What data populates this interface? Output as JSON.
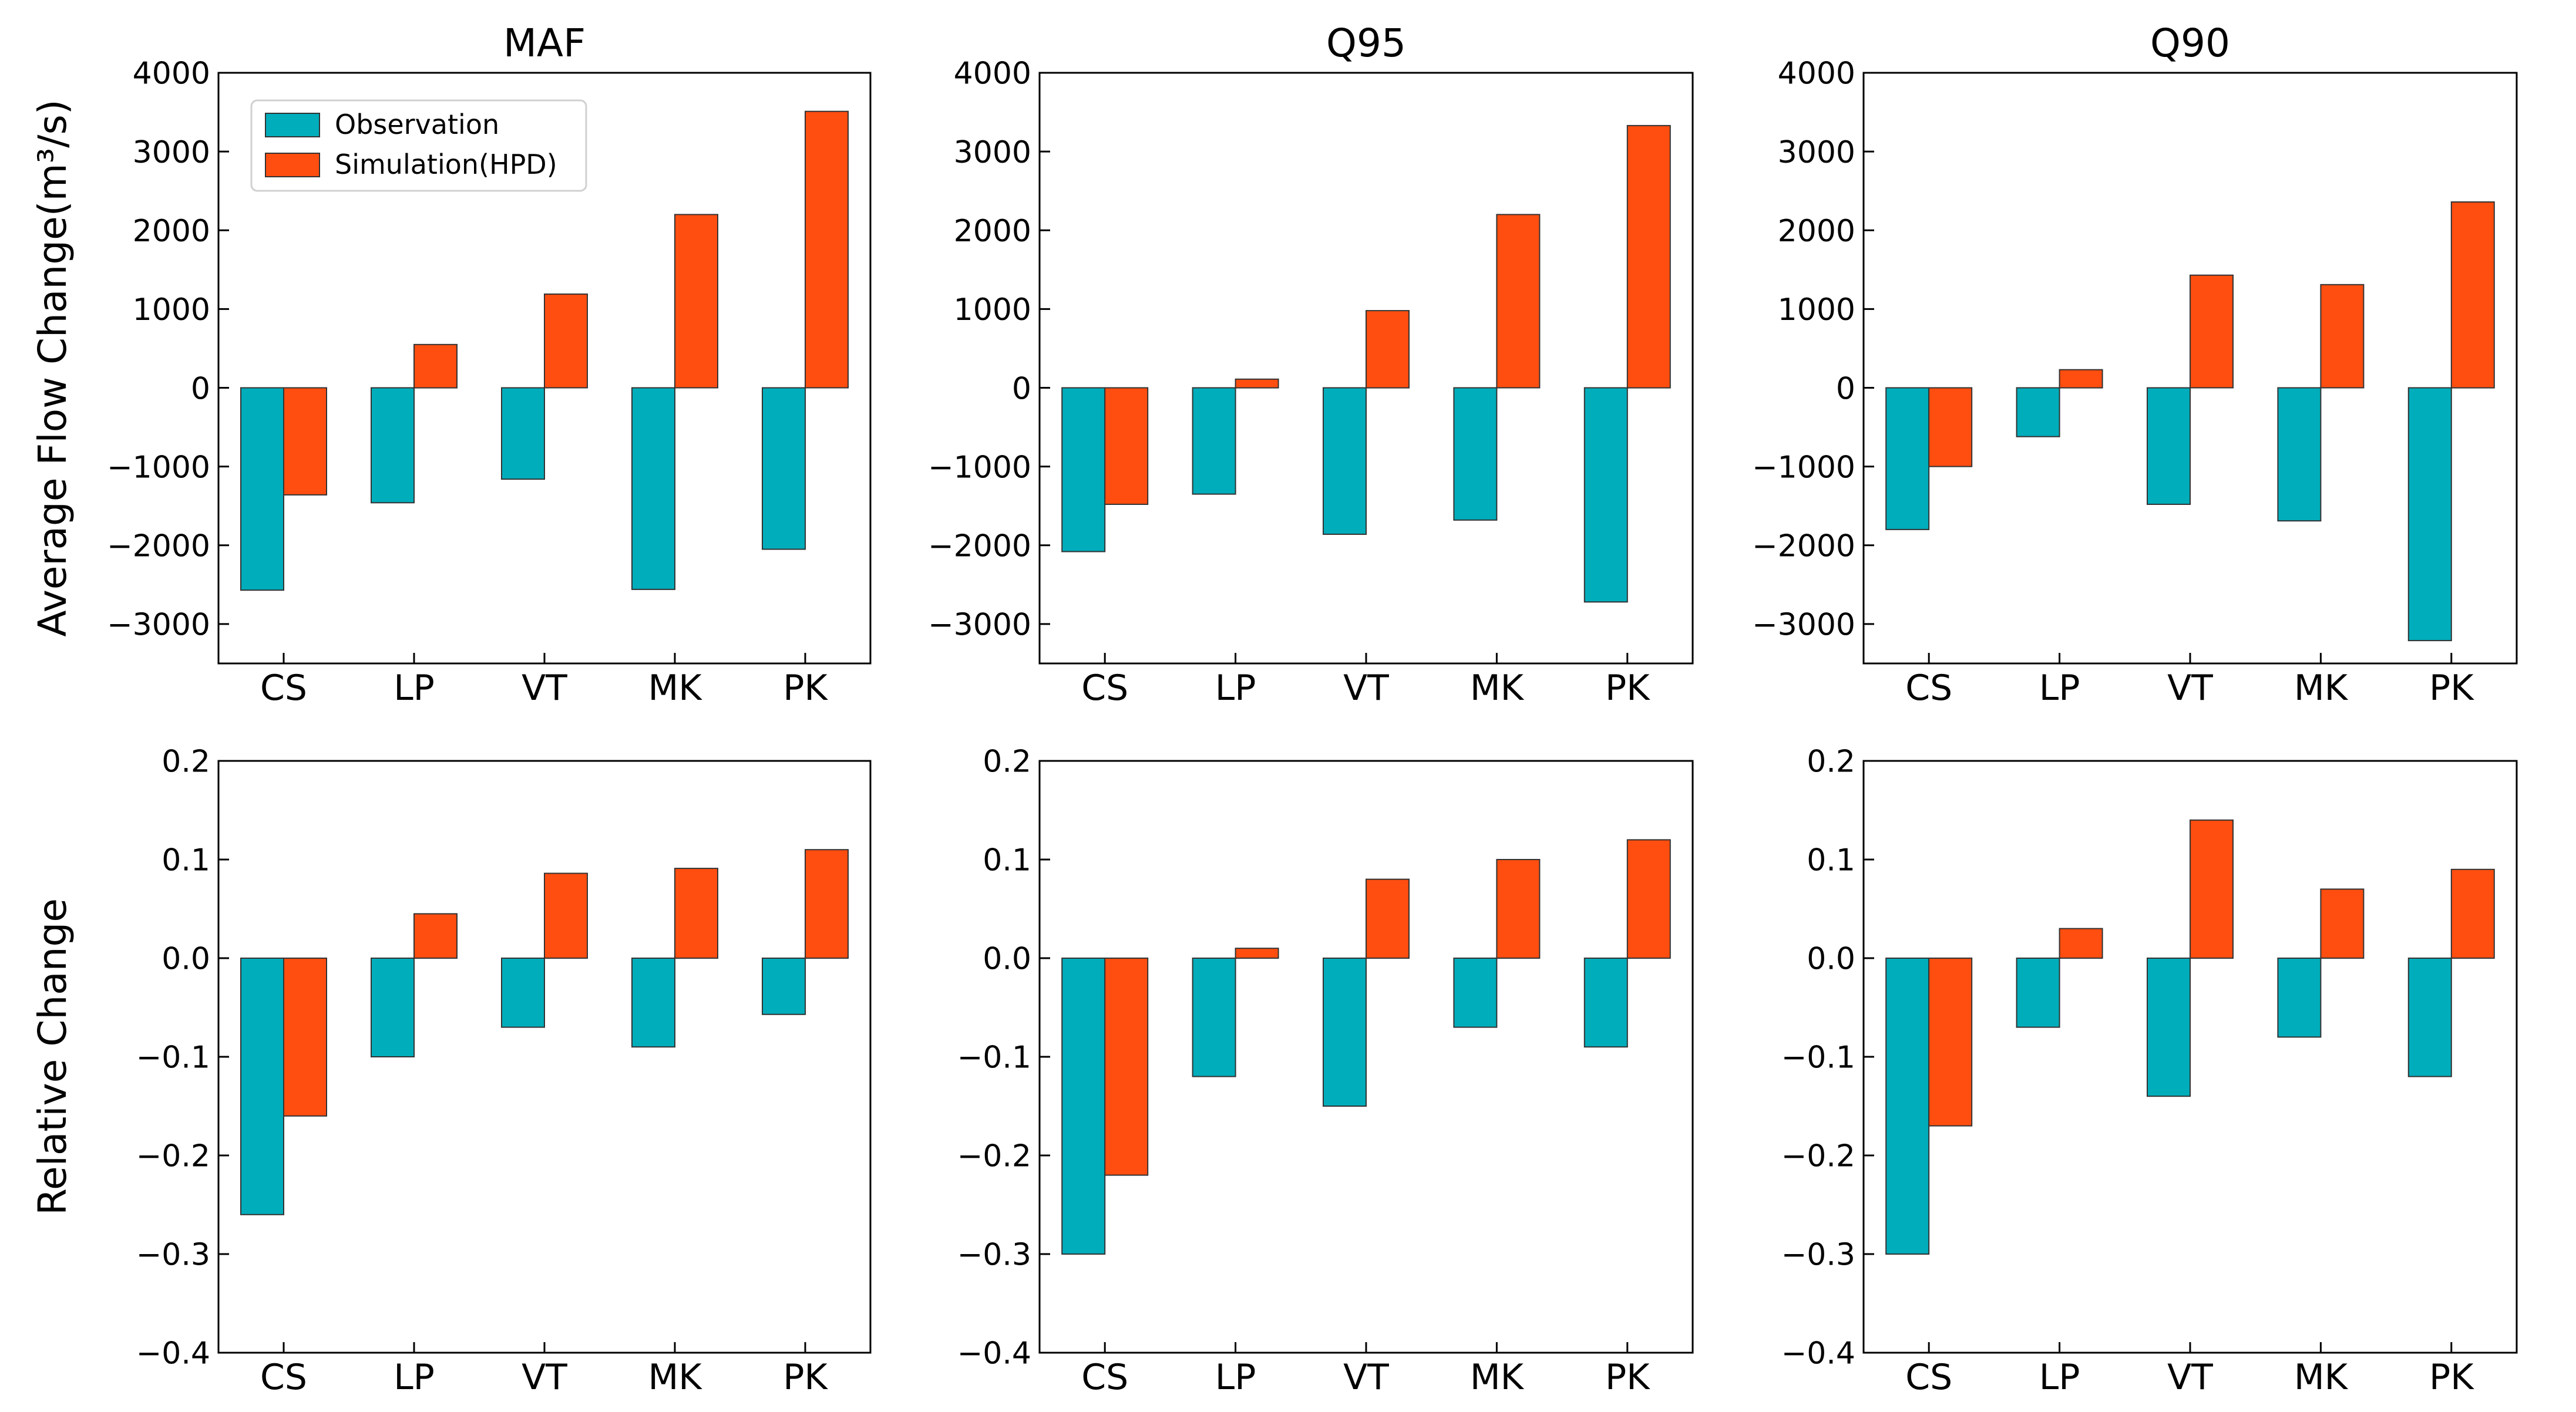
{
  "figure": {
    "row_labels": [
      "Average Flow Change(m³/s)",
      "Relative Change"
    ],
    "legend": {
      "series": [
        "Observation",
        "Simulation(HPD)"
      ],
      "location": "upper-left",
      "panel": 0
    }
  },
  "colors": {
    "Observation": "#00adbb",
    "Simulation(HPD)": "#ff4e10",
    "edge": "#333333",
    "frame": "#000000"
  },
  "chart_data": [
    {
      "type": "bar",
      "title": "MAF",
      "xlabel": "",
      "ylabel": "Average Flow Change(m³/s)",
      "categories": [
        "CS",
        "LP",
        "VT",
        "MK",
        "PK"
      ],
      "series": [
        {
          "name": "Observation",
          "values": [
            -2570,
            -1460,
            -1160,
            -2560,
            -2050
          ]
        },
        {
          "name": "Simulation(HPD)",
          "values": [
            -1360,
            550,
            1190,
            2200,
            3510
          ]
        }
      ],
      "ylim": [
        -3500,
        4000
      ],
      "yticks": [
        -3000,
        -2000,
        -1000,
        0,
        1000,
        2000,
        3000,
        4000
      ],
      "ytick_labels": [
        "−3000",
        "−2000",
        "−1000",
        "0",
        "1000",
        "2000",
        "3000",
        "4000"
      ],
      "grid": false
    },
    {
      "type": "bar",
      "title": "Q95",
      "xlabel": "",
      "ylabel": "",
      "categories": [
        "CS",
        "LP",
        "VT",
        "MK",
        "PK"
      ],
      "series": [
        {
          "name": "Observation",
          "values": [
            -2080,
            -1350,
            -1860,
            -1680,
            -2720
          ]
        },
        {
          "name": "Simulation(HPD)",
          "values": [
            -1480,
            110,
            980,
            2200,
            3330
          ]
        }
      ],
      "ylim": [
        -3500,
        4000
      ],
      "yticks": [
        -3000,
        -2000,
        -1000,
        0,
        1000,
        2000,
        3000,
        4000
      ],
      "ytick_labels": [
        "−3000",
        "−2000",
        "−1000",
        "0",
        "1000",
        "2000",
        "3000",
        "4000"
      ],
      "grid": false
    },
    {
      "type": "bar",
      "title": "Q90",
      "xlabel": "",
      "ylabel": "",
      "categories": [
        "CS",
        "LP",
        "VT",
        "MK",
        "PK"
      ],
      "series": [
        {
          "name": "Observation",
          "values": [
            -1800,
            -620,
            -1480,
            -1690,
            -3210
          ]
        },
        {
          "name": "Simulation(HPD)",
          "values": [
            -1000,
            230,
            1430,
            1310,
            2360
          ]
        }
      ],
      "ylim": [
        -3500,
        4000
      ],
      "yticks": [
        -3000,
        -2000,
        -1000,
        0,
        1000,
        2000,
        3000,
        4000
      ],
      "ytick_labels": [
        "−3000",
        "−2000",
        "−1000",
        "0",
        "1000",
        "2000",
        "3000",
        "4000"
      ],
      "grid": false
    },
    {
      "type": "bar",
      "title": "",
      "xlabel": "",
      "ylabel": "Relative Change",
      "categories": [
        "CS",
        "LP",
        "VT",
        "MK",
        "PK"
      ],
      "series": [
        {
          "name": "Observation",
          "values": [
            -0.26,
            -0.1,
            -0.07,
            -0.09,
            -0.057
          ]
        },
        {
          "name": "Simulation(HPD)",
          "values": [
            -0.16,
            0.045,
            0.086,
            0.091,
            0.11
          ]
        }
      ],
      "ylim": [
        -0.4,
        0.2
      ],
      "yticks": [
        -0.4,
        -0.3,
        -0.2,
        -0.1,
        0.0,
        0.1,
        0.2
      ],
      "ytick_labels": [
        "−0.4",
        "−0.3",
        "−0.2",
        "−0.1",
        "0.0",
        "0.1",
        "0.2"
      ],
      "grid": false
    },
    {
      "type": "bar",
      "title": "",
      "xlabel": "",
      "ylabel": "",
      "categories": [
        "CS",
        "LP",
        "VT",
        "MK",
        "PK"
      ],
      "series": [
        {
          "name": "Observation",
          "values": [
            -0.3,
            -0.12,
            -0.15,
            -0.07,
            -0.09
          ]
        },
        {
          "name": "Simulation(HPD)",
          "values": [
            -0.22,
            0.01,
            0.08,
            0.1,
            0.12
          ]
        }
      ],
      "ylim": [
        -0.4,
        0.2
      ],
      "yticks": [
        -0.4,
        -0.3,
        -0.2,
        -0.1,
        0.0,
        0.1,
        0.2
      ],
      "ytick_labels": [
        "−0.4",
        "−0.3",
        "−0.2",
        "−0.1",
        "0.0",
        "0.1",
        "0.2"
      ],
      "grid": false
    },
    {
      "type": "bar",
      "title": "",
      "xlabel": "",
      "ylabel": "",
      "categories": [
        "CS",
        "LP",
        "VT",
        "MK",
        "PK"
      ],
      "series": [
        {
          "name": "Observation",
          "values": [
            -0.3,
            -0.07,
            -0.14,
            -0.08,
            -0.12
          ]
        },
        {
          "name": "Simulation(HPD)",
          "values": [
            -0.17,
            0.03,
            0.14,
            0.07,
            0.09
          ]
        }
      ],
      "ylim": [
        -0.4,
        0.2
      ],
      "yticks": [
        -0.4,
        -0.3,
        -0.2,
        -0.1,
        0.0,
        0.1,
        0.2
      ],
      "ytick_labels": [
        "−0.4",
        "−0.3",
        "−0.2",
        "−0.1",
        "0.0",
        "0.1",
        "0.2"
      ],
      "grid": false
    }
  ]
}
